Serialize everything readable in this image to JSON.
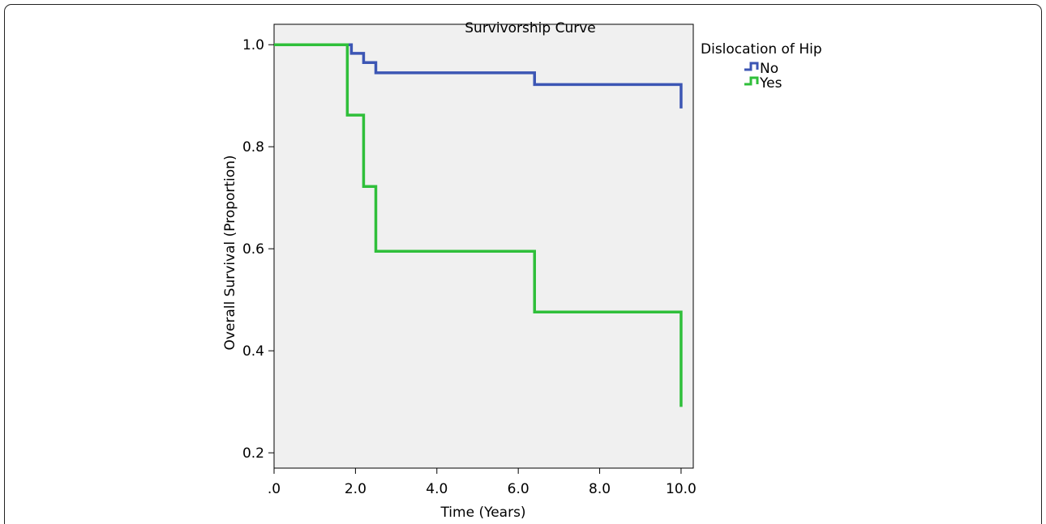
{
  "colors": {
    "plot_background": "#f0f0f0",
    "series_no": "#3c56b4",
    "series_yes": "#2fbf3a"
  },
  "chart_data": {
    "type": "line",
    "step": true,
    "title": "Survivorship Curve",
    "xlabel": "Time (Years)",
    "ylabel": "Overall Survival (Proportion)",
    "xlim": [
      0,
      10.3
    ],
    "ylim": [
      0.17,
      1.04
    ],
    "xticks": [
      {
        "value": 0,
        "label": ".0"
      },
      {
        "value": 2,
        "label": "2.0"
      },
      {
        "value": 4,
        "label": "4.0"
      },
      {
        "value": 6,
        "label": "6.0"
      },
      {
        "value": 8,
        "label": "8.0"
      },
      {
        "value": 10,
        "label": "10.0"
      }
    ],
    "yticks": [
      {
        "value": 0.2,
        "label": "0.2"
      },
      {
        "value": 0.4,
        "label": "0.4"
      },
      {
        "value": 0.6,
        "label": "0.6"
      },
      {
        "value": 0.8,
        "label": "0.8"
      },
      {
        "value": 1.0,
        "label": "1.0"
      }
    ],
    "grid": false,
    "legend": {
      "title": "Dislocation of Hip",
      "position": "outside-top-right"
    },
    "series": [
      {
        "name": "No",
        "color": "#3c56b4",
        "points": [
          {
            "x": 0,
            "y": 1.0
          },
          {
            "x": 1.9,
            "y": 0.983
          },
          {
            "x": 2.2,
            "y": 0.965
          },
          {
            "x": 2.5,
            "y": 0.945
          },
          {
            "x": 6.4,
            "y": 0.922
          },
          {
            "x": 10.0,
            "y": 0.875
          }
        ]
      },
      {
        "name": "Yes",
        "color": "#2fbf3a",
        "points": [
          {
            "x": 0,
            "y": 1.0
          },
          {
            "x": 1.8,
            "y": 0.862
          },
          {
            "x": 2.2,
            "y": 0.722
          },
          {
            "x": 2.5,
            "y": 0.595
          },
          {
            "x": 6.4,
            "y": 0.476
          },
          {
            "x": 10.0,
            "y": 0.29
          }
        ]
      }
    ]
  }
}
